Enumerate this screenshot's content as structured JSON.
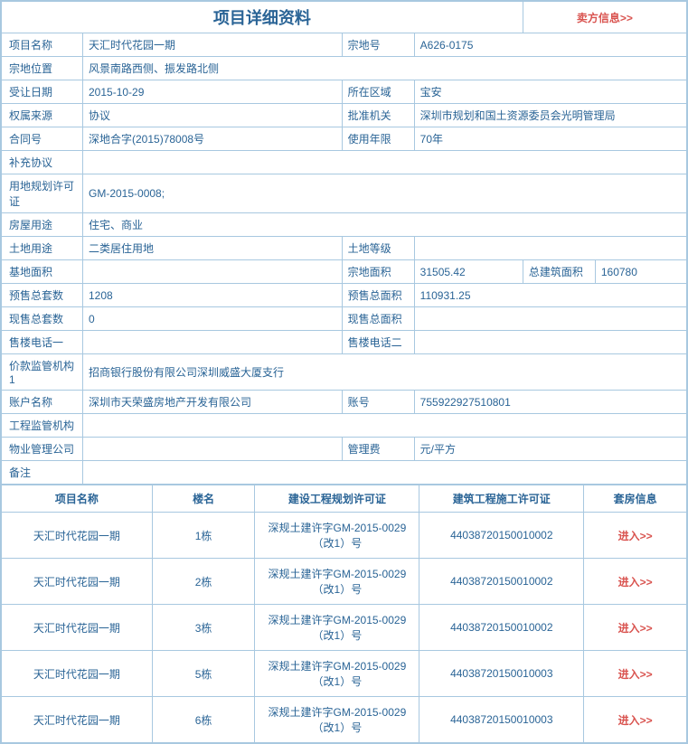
{
  "colors": {
    "border": "#a8c8e0",
    "text": "#2a6496",
    "link_red": "#d9534f",
    "background": "#ffffff"
  },
  "typography": {
    "base_fontsize": 12,
    "title_fontsize": 18,
    "font_family": "Microsoft YaHei, SimSun, Arial"
  },
  "header": {
    "title": "项目详细资料",
    "seller_link": "卖方信息>>"
  },
  "labels": {
    "project_name": "项目名称",
    "parcel_no": "宗地号",
    "parcel_location": "宗地位置",
    "transfer_date": "受让日期",
    "area": "所在区域",
    "ownership_source": "权属来源",
    "approval_authority": "批准机关",
    "contract_no": "合同号",
    "usage_years": "使用年限",
    "supplementary": "补充协议",
    "land_planning_permit": "用地规划许可证",
    "house_usage": "房屋用途",
    "land_usage": "土地用途",
    "land_grade": "土地等级",
    "base_area": "基地面积",
    "parcel_area": "宗地面积",
    "total_build_area": "总建筑面积",
    "presale_total_units": "预售总套数",
    "presale_total_area": "预售总面积",
    "current_sale_units": "现售总套数",
    "current_sale_area": "现售总面积",
    "sales_phone1": "售楼电话一",
    "sales_phone2": "售楼电话二",
    "price_supervision": "价款监管机构1",
    "account_name": "账户名称",
    "account_no": "账号",
    "engineering_supervision": "工程监管机构",
    "property_management": "物业管理公司",
    "management_fee": "管理费",
    "remarks": "备注"
  },
  "values": {
    "project_name": "天汇时代花园一期",
    "parcel_no": "A626-0175",
    "parcel_location": "风景南路西侧、振发路北侧",
    "transfer_date": "2015-10-29",
    "area": "宝安",
    "ownership_source": "协议",
    "approval_authority": "深圳市规划和国土资源委员会光明管理局",
    "contract_no": "深地合字(2015)78008号",
    "usage_years": "70年",
    "supplementary": "",
    "land_planning_permit": "GM-2015-0008;",
    "house_usage": "住宅、商业",
    "land_usage": "二类居住用地",
    "land_grade": "",
    "base_area": "",
    "parcel_area": "31505.42",
    "total_build_area": "160780",
    "presale_total_units": "1208",
    "presale_total_area": "110931.25",
    "current_sale_units": "0",
    "current_sale_area": "",
    "sales_phone1": "",
    "sales_phone2": "",
    "price_supervision": "招商银行股份有限公司深圳威盛大厦支行",
    "account_name": "深圳市天荣盛房地产开发有限公司",
    "account_no": "755922927510801",
    "engineering_supervision": "",
    "property_management": "",
    "management_fee": "元/平方",
    "remarks": ""
  },
  "buildings_table": {
    "headers": {
      "project_name": "项目名称",
      "building_name": "楼名",
      "construction_planning_permit": "建设工程规划许可证",
      "construction_work_permit": "建筑工程施工许可证",
      "room_info": "套房信息"
    },
    "enter_text": "进入>>",
    "rows": [
      {
        "project_name": "天汇时代花园一期",
        "building_name": "1栋",
        "planning_permit": "深规土建许字GM-2015-0029（改1）号",
        "work_permit": "4403872015001​0002"
      },
      {
        "project_name": "天汇时代花园一期",
        "building_name": "2栋",
        "planning_permit": "深规土建许字GM-2015-0029（改1）号",
        "work_permit": "4403872015001​0002"
      },
      {
        "project_name": "天汇时代花园一期",
        "building_name": "3栋",
        "planning_permit": "深规土建许字GM-2015-0029（改1）号",
        "work_permit": "4403872015001​0002"
      },
      {
        "project_name": "天汇时代花园一期",
        "building_name": "5栋",
        "planning_permit": "深规土建许字GM-2015-0029（改1）号",
        "work_permit": "4403872015001​0003"
      },
      {
        "project_name": "天汇时代花园一期",
        "building_name": "6栋",
        "planning_permit": "深规土建许字GM-2015-0029（改1）号",
        "work_permit": "4403872015001​0003"
      }
    ]
  }
}
